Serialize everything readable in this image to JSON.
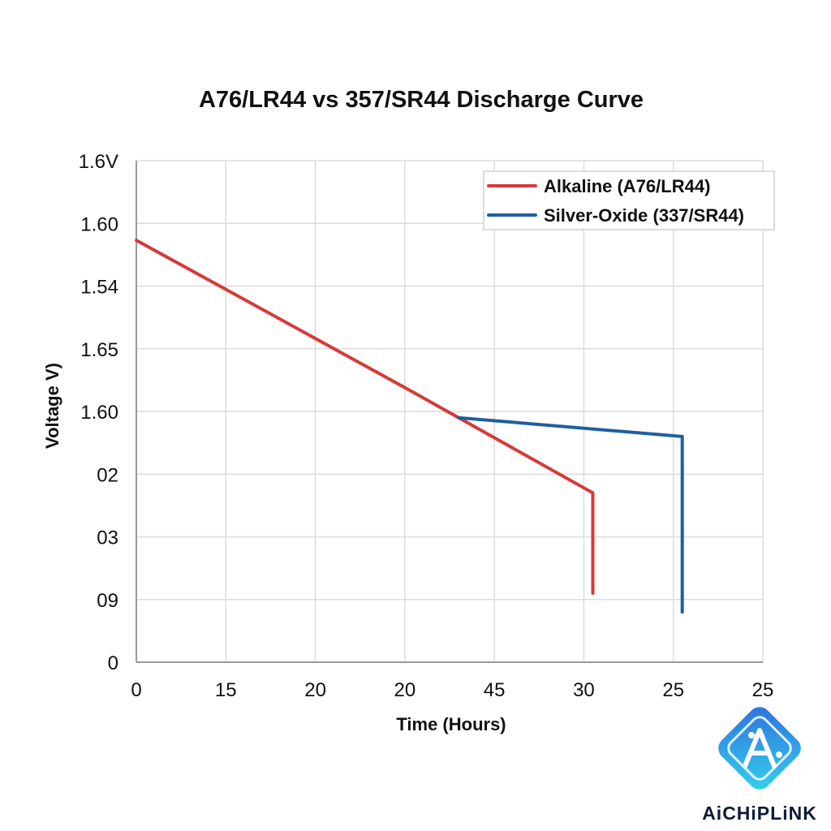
{
  "chart_data": {
    "type": "line",
    "title": "A76/LR44 vs 357/SR44 Discharge Curve",
    "xlabel": "Time (Hours)",
    "ylabel": "Voltage V)",
    "x_ticks": [
      "0",
      "15",
      "20",
      "20",
      "45",
      "30",
      "25",
      "25"
    ],
    "y_ticks": [
      "0",
      "09",
      "03",
      "02",
      "1.60",
      "1.65",
      "1.54",
      "1.60",
      "1.6V"
    ],
    "xlim": [
      0,
      7
    ],
    "ylim": [
      0,
      8
    ],
    "grid": true,
    "legend_position": "top-right",
    "series": [
      {
        "name": "Alkaline (A76/LR44)",
        "color": "#d63a3a",
        "points": [
          {
            "x": 0,
            "y": 6.73
          },
          {
            "x": 3.0,
            "y": 4.38
          },
          {
            "x": 5.1,
            "y": 2.7
          },
          {
            "x": 5.1,
            "y": 1.1
          }
        ]
      },
      {
        "name": "Silver-Oxide (337/SR44)",
        "color": "#1f5fa0",
        "points": [
          {
            "x": 3.6,
            "y": 3.9
          },
          {
            "x": 6.1,
            "y": 3.6
          },
          {
            "x": 6.1,
            "y": 0.8
          }
        ]
      }
    ]
  },
  "brand": {
    "name": "AiCHiPLiNK",
    "accent": "#2f6fe0",
    "accent_light": "#34d3e8"
  }
}
